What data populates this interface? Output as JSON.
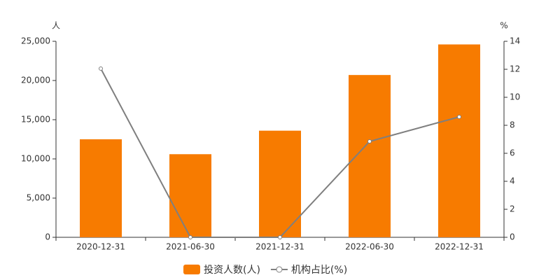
{
  "chart_data": {
    "type": "bar",
    "y_unit": "人",
    "y2_unit": "%",
    "categories": [
      "2020-12-31",
      "2021-06-30",
      "2021-12-31",
      "2022-06-30",
      "2022-12-31"
    ],
    "series": [
      {
        "name": "投资人数(人)",
        "type": "bar",
        "color": "#f77b00",
        "values": [
          12500,
          10600,
          13600,
          20700,
          24600
        ]
      },
      {
        "name": "机构占比(%)",
        "type": "line",
        "axis": "y2",
        "color": "#7f7f7f",
        "values": [
          12.05,
          0,
          0,
          6.85,
          8.6
        ]
      }
    ],
    "ylim": [
      0,
      25000
    ],
    "yticks": [
      0,
      {
        "value": 5000,
        "label": "5,000"
      },
      {
        "value": 10000,
        "label": "10,000"
      },
      {
        "value": 15000,
        "label": "15,000"
      },
      {
        "value": 20000,
        "label": "20,000"
      },
      {
        "value": 25000,
        "label": "25,000"
      }
    ],
    "y2lim": [
      0,
      14
    ],
    "y2ticks": [
      0,
      2,
      4,
      6,
      8,
      10,
      12,
      14
    ],
    "grid": false
  }
}
